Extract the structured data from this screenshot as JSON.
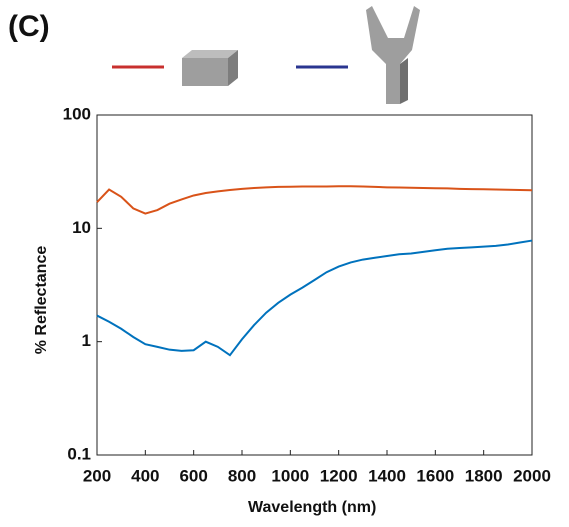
{
  "chart_data": {
    "type": "line",
    "panel_label": "(C)",
    "x_label": "Wavelength (nm)",
    "y_label": "% Reflectance",
    "log_y": true,
    "xlim": [
      200,
      2000
    ],
    "xticks": [
      200,
      400,
      600,
      800,
      1000,
      1200,
      1400,
      1600,
      1800,
      2000
    ],
    "ylim": [
      0.1,
      100
    ],
    "yticks": [
      0.1,
      1,
      10,
      100
    ],
    "x": [
      200,
      250,
      300,
      350,
      400,
      450,
      500,
      550,
      600,
      650,
      700,
      750,
      800,
      850,
      900,
      950,
      1000,
      1050,
      1100,
      1150,
      1200,
      1250,
      1300,
      1350,
      1400,
      1450,
      1500,
      1550,
      1600,
      1650,
      1700,
      1750,
      1800,
      1850,
      1900,
      1950,
      2000
    ],
    "series": [
      {
        "color": "#d95319",
        "legend_color": "#c8302e",
        "values": [
          17,
          22,
          19,
          15,
          13.5,
          14.5,
          16.5,
          18,
          19.5,
          20.5,
          21.2,
          21.8,
          22.3,
          22.7,
          23,
          23.2,
          23.3,
          23.4,
          23.4,
          23.4,
          23.5,
          23.5,
          23.4,
          23.2,
          23.0,
          22.9,
          22.8,
          22.7,
          22.6,
          22.5,
          22.3,
          22.2,
          22.1,
          22.0,
          21.9,
          21.8,
          21.7
        ]
      },
      {
        "color": "#0072bd",
        "legend_color": "#2a3590",
        "values": [
          1.7,
          1.5,
          1.3,
          1.1,
          0.95,
          0.9,
          0.85,
          0.83,
          0.84,
          1.0,
          0.9,
          0.76,
          1.05,
          1.4,
          1.8,
          2.2,
          2.6,
          3.0,
          3.5,
          4.1,
          4.6,
          5.0,
          5.3,
          5.5,
          5.7,
          5.9,
          6.0,
          6.2,
          6.4,
          6.6,
          6.7,
          6.8,
          6.9,
          7.0,
          7.2,
          7.5,
          7.8
        ]
      }
    ]
  }
}
